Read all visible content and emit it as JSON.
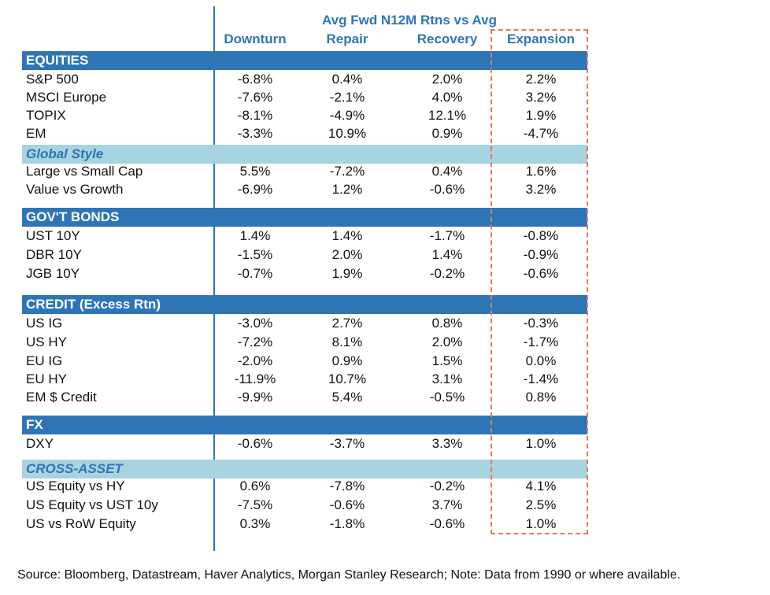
{
  "header": {
    "title": "Avg Fwd N12M Rtns vs Avg",
    "columns": [
      "Downturn",
      "Repair",
      "Recovery",
      "Expansion"
    ]
  },
  "sections": [
    {
      "title": "EQUITIES",
      "style": "dark",
      "rows": [
        {
          "label": "S&P 500",
          "values": [
            "-6.8%",
            "0.4%",
            "2.0%",
            "2.2%"
          ]
        },
        {
          "label": "MSCI Europe",
          "values": [
            "-7.6%",
            "-2.1%",
            "4.0%",
            "3.2%"
          ]
        },
        {
          "label": "TOPIX",
          "values": [
            "-8.1%",
            "-4.9%",
            "12.1%",
            "1.9%"
          ]
        },
        {
          "label": "EM",
          "values": [
            "-3.3%",
            "10.9%",
            "0.9%",
            "-4.7%"
          ]
        }
      ]
    },
    {
      "title": "Global Style",
      "style": "light",
      "rows": [
        {
          "label": "Large vs Small Cap",
          "values": [
            "5.5%",
            "-7.2%",
            "0.4%",
            "1.6%"
          ]
        },
        {
          "label": "Value vs Growth",
          "values": [
            "-6.9%",
            "1.2%",
            "-0.6%",
            "3.2%"
          ]
        }
      ]
    },
    {
      "title": "GOV'T BONDS",
      "style": "dark",
      "rows": [
        {
          "label": "UST 10Y",
          "values": [
            "1.4%",
            "1.4%",
            "-1.7%",
            "-0.8%"
          ]
        },
        {
          "label": "DBR 10Y",
          "values": [
            "-1.5%",
            "2.0%",
            "1.4%",
            "-0.9%"
          ]
        },
        {
          "label": "JGB 10Y",
          "values": [
            "-0.7%",
            "1.9%",
            "-0.2%",
            "-0.6%"
          ]
        }
      ]
    },
    {
      "title": "CREDIT (Excess Rtn)",
      "style": "dark",
      "rows": [
        {
          "label": "US IG",
          "values": [
            "-3.0%",
            "2.7%",
            "0.8%",
            "-0.3%"
          ]
        },
        {
          "label": "US HY",
          "values": [
            "-7.2%",
            "8.1%",
            "2.0%",
            "-1.7%"
          ]
        },
        {
          "label": "EU IG",
          "values": [
            "-2.0%",
            "0.9%",
            "1.5%",
            "0.0%"
          ]
        },
        {
          "label": "EU HY",
          "values": [
            "-11.9%",
            "10.7%",
            "3.1%",
            "-1.4%"
          ]
        },
        {
          "label": "EM $ Credit",
          "values": [
            "-9.9%",
            "5.4%",
            "-0.5%",
            "0.8%"
          ]
        }
      ]
    },
    {
      "title": "FX",
      "style": "dark",
      "rows": [
        {
          "label": "DXY",
          "values": [
            "-0.6%",
            "-3.7%",
            "3.3%",
            "1.0%"
          ]
        }
      ]
    },
    {
      "title": "CROSS-ASSET",
      "style": "light",
      "rows": [
        {
          "label": "US Equity vs HY",
          "values": [
            "0.6%",
            "-7.8%",
            "-0.2%",
            "4.1%"
          ]
        },
        {
          "label": "US Equity vs UST 10y",
          "values": [
            "-7.5%",
            "-0.6%",
            "3.7%",
            "2.5%"
          ]
        },
        {
          "label": "US vs RoW Equity",
          "values": [
            "0.3%",
            "-1.8%",
            "-0.6%",
            "1.0%"
          ]
        }
      ]
    }
  ],
  "source": "Source: Bloomberg, Datastream, Haver Analytics, Morgan Stanley Research; Note: Data from 1990 or where available.",
  "colors": {
    "accent": "#2e75b6",
    "light_band": "#a8d3e1",
    "highlight_border": "#e8795a"
  }
}
